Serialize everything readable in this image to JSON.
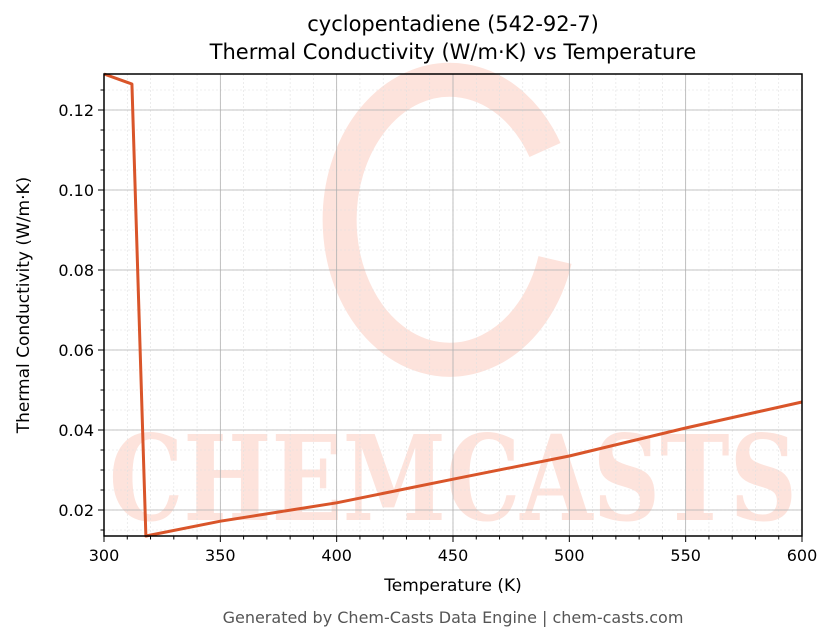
{
  "title_line1": "cyclopentadiene (542-92-7)",
  "title_line2": "Thermal Conductivity (W/m·K) vs Temperature",
  "footer": "Generated by Chem-Casts Data Engine | chem-casts.com",
  "watermark": "CHEMCASTS",
  "colors": {
    "line": "#d9552a",
    "watermark": "#fde3dc",
    "grid_major": "#b0b0b0",
    "grid_minor": "#e0e0e0"
  },
  "chart_data": {
    "type": "line",
    "title": "cyclopentadiene (542-92-7)\nThermal Conductivity (W/m·K) vs Temperature",
    "xlabel": "Temperature (K)",
    "ylabel": "Thermal Conductivity (W/m·K)",
    "xlim": [
      300,
      600
    ],
    "ylim": [
      0.0135,
      0.129
    ],
    "xticks": [
      300,
      350,
      400,
      450,
      500,
      550,
      600
    ],
    "yticks": [
      0.02,
      0.04,
      0.06,
      0.08,
      0.1,
      0.12
    ],
    "ytick_labels": [
      "0.02",
      "0.04",
      "0.06",
      "0.08",
      "0.10",
      "0.12"
    ],
    "grid": true,
    "series": [
      {
        "name": "Thermal Conductivity",
        "x": [
          300,
          312,
          318,
          350,
          400,
          450,
          500,
          550,
          600
        ],
        "y": [
          0.129,
          0.1265,
          0.0135,
          0.0172,
          0.0218,
          0.0277,
          0.0335,
          0.0405,
          0.047
        ]
      }
    ]
  }
}
